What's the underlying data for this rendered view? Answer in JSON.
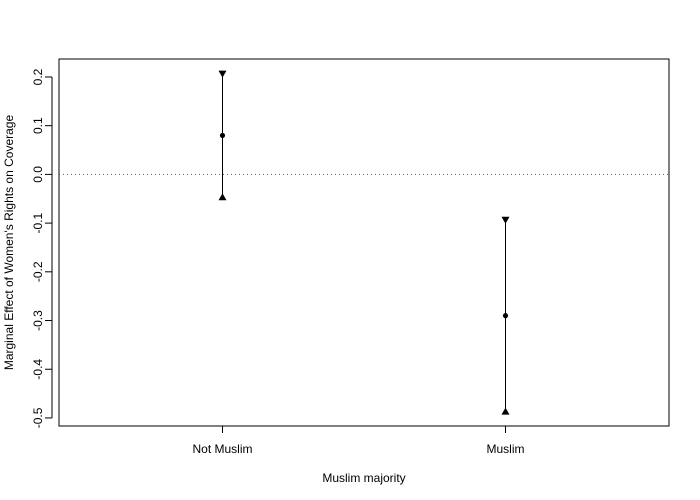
{
  "chart_data": {
    "type": "scatter",
    "title": "",
    "xlabel": "Muslim majority",
    "ylabel": "Marginal Effect of Women's Rights on Coverage",
    "categories": [
      "Not Muslim",
      "Muslim"
    ],
    "estimate": [
      0.08,
      -0.29
    ],
    "upper": [
      0.207,
      -0.093
    ],
    "lower": [
      -0.047,
      -0.487
    ],
    "reference_line": 0,
    "ylim": [
      -0.51,
      0.22
    ],
    "yticks": [
      -0.5,
      -0.4,
      -0.3,
      -0.2,
      -0.1,
      0.0,
      0.1,
      0.2
    ],
    "ytick_labels": [
      "-0.5",
      "-0.4",
      "-0.3",
      "-0.2",
      "-0.1",
      "0.0",
      "0.1",
      "0.2"
    ],
    "grid": false,
    "legend": "none"
  }
}
